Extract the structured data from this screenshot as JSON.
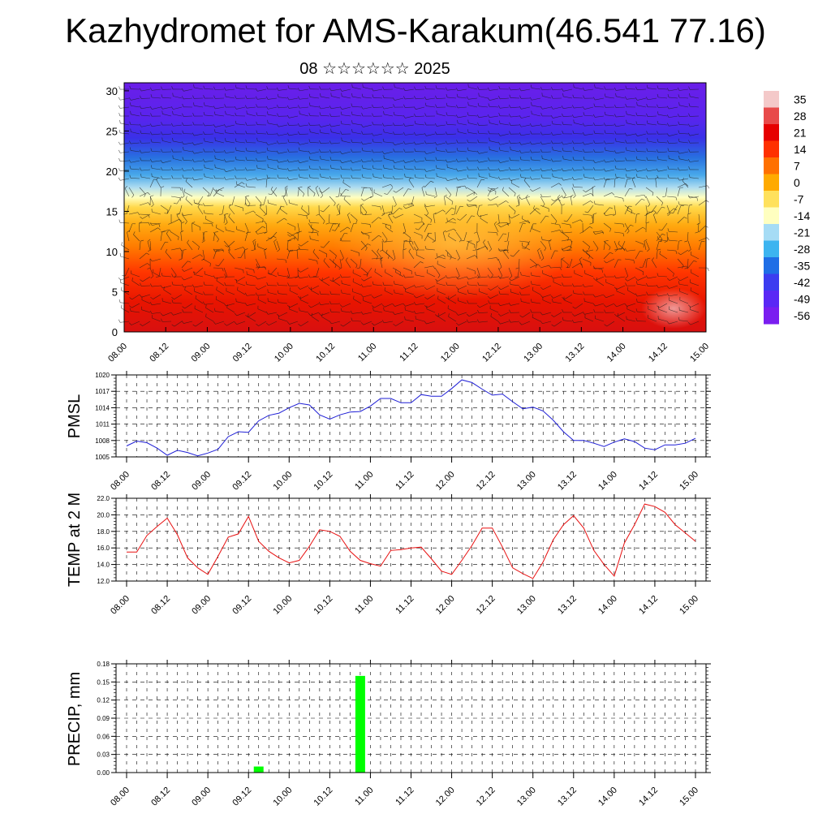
{
  "title": "Kazhydromet for AMS-Karakum(46.541 77.16)",
  "subtitle": "08 ☆☆☆☆☆☆ 2025",
  "time_ticks": [
    "08.00",
    "08.12",
    "09.00",
    "09.12",
    "10.00",
    "10.12",
    "11.00",
    "11.12",
    "12.00",
    "12.12",
    "13.00",
    "13.12",
    "14.00",
    "14.12",
    "15.00"
  ],
  "colors": {
    "pmsl_line": "#1f1fd6",
    "temp_line": "#e81010",
    "precip_bar": "#00ff00",
    "grid": "#000000"
  },
  "chart_data": [
    {
      "type": "heatmap",
      "title": "",
      "xlabel": "",
      "ylabel": "",
      "y_ticks": [
        0,
        5,
        10,
        15,
        20,
        25,
        30
      ],
      "ylim": [
        0,
        31
      ],
      "colorbar": {
        "labels": [
          "35",
          "28",
          "21",
          "14",
          "7",
          "0",
          "-7",
          "-14",
          "-21",
          "-28",
          "-35",
          "-42",
          "-49",
          "-56"
        ],
        "colors": [
          "#f4c9c9",
          "#e84a4a",
          "#e60000",
          "#ff3000",
          "#ff7000",
          "#ffaa00",
          "#ffe15c",
          "#ffffc0",
          "#a6dcf5",
          "#3cb4f0",
          "#1f6ee6",
          "#3c3cf0",
          "#5a28f5",
          "#7a1ef0"
        ]
      },
      "overlay": "wind barbs"
    },
    {
      "type": "line",
      "ylabel": "PMSL",
      "ylim": [
        1005,
        1020
      ],
      "y_ticks": [
        1005,
        1008,
        1011,
        1014,
        1017,
        1020
      ],
      "x_step_hours": 3,
      "values": [
        1007.0,
        1007.9,
        1007.6,
        1006.6,
        1005.3,
        1006.2,
        1005.8,
        1005.2,
        1005.7,
        1006.4,
        1008.7,
        1009.6,
        1009.5,
        1011.6,
        1012.6,
        1013.0,
        1014.0,
        1014.8,
        1014.5,
        1012.7,
        1011.9,
        1012.7,
        1013.2,
        1013.3,
        1014.3,
        1015.7,
        1015.7,
        1014.9,
        1014.9,
        1016.4,
        1016.1,
        1016.1,
        1017.5,
        1019.1,
        1018.6,
        1017.4,
        1016.3,
        1016.5,
        1015.1,
        1013.8,
        1014.1,
        1013.4,
        1011.7,
        1009.6,
        1008.0,
        1008.0,
        1007.5,
        1006.9,
        1007.7,
        1008.3,
        1007.8,
        1006.6,
        1006.3,
        1007.2,
        1007.2,
        1007.5,
        1008.4
      ]
    },
    {
      "type": "line",
      "ylabel": "TEMP at 2 M",
      "ylim": [
        12.0,
        22.0
      ],
      "y_ticks": [
        "12.0",
        "14.0",
        "16.0",
        "18.0",
        "20.0",
        "22.0"
      ],
      "x_step_hours": 3,
      "values": [
        15.5,
        15.5,
        17.5,
        18.6,
        19.6,
        17.6,
        14.8,
        13.6,
        12.8,
        15.0,
        17.3,
        17.7,
        19.8,
        16.8,
        15.6,
        14.8,
        14.2,
        14.5,
        16.2,
        18.2,
        18.0,
        17.4,
        15.6,
        14.5,
        14.1,
        13.8,
        15.7,
        15.8,
        16.0,
        16.1,
        14.7,
        13.2,
        12.8,
        14.5,
        16.3,
        18.4,
        18.4,
        16.1,
        13.6,
        12.9,
        12.3,
        14.3,
        17.0,
        18.8,
        19.9,
        18.4,
        15.7,
        14.0,
        12.6,
        16.6,
        18.8,
        21.3,
        21.0,
        20.3,
        18.8,
        17.8,
        16.8
      ]
    },
    {
      "type": "bar",
      "ylabel": "PRECIP, mm",
      "ylim": [
        0,
        0.18
      ],
      "y_ticks": [
        "0.00",
        "0.03",
        "0.06",
        "0.09",
        "0.12",
        "0.15",
        "0.18"
      ],
      "bars": [
        {
          "time": "09.15",
          "value": 0.01
        },
        {
          "time": "10.21",
          "value": 0.16
        }
      ]
    }
  ]
}
